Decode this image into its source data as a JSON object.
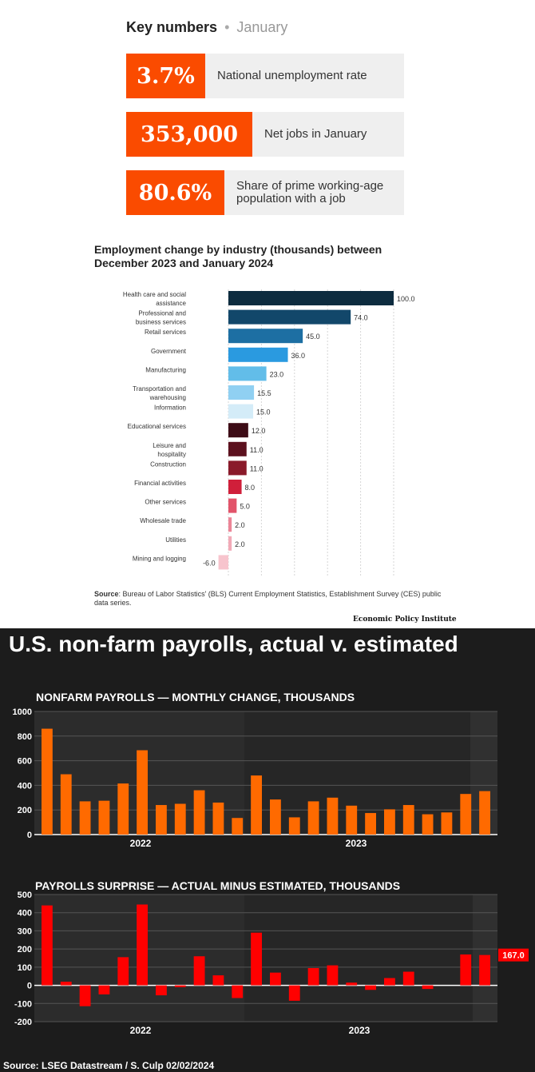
{
  "key_numbers": {
    "title": "Key numbers",
    "separator": "•",
    "period": "January",
    "items": [
      {
        "value": "3.7%",
        "label": "National unemployment rate"
      },
      {
        "value": "353,000",
        "label": "Net jobs in January"
      },
      {
        "value": "80.6%",
        "label": "Share of prime working-age population with a job"
      }
    ]
  },
  "epi": {
    "source_label": "Source",
    "source_text": ": Bureau of Labor Statistics' (BLS) Current Employment Statistics, Establishment Survey (CES) public data series.",
    "publisher": "Economic Policy Institute"
  },
  "payrolls": {
    "title": "U.S. non-farm payrolls, actual v. estimated",
    "source": "Source: LSEG Datastream / S. Culp 02/02/2024"
  },
  "chart_data": [
    {
      "type": "bar",
      "orientation": "horizontal",
      "title": "Employment change by industry (thousands) between December 2023 and January 2024",
      "categories": [
        "Health care and social assistance",
        "Professional and business services",
        "Retail services",
        "Government",
        "Manufacturing",
        "Transportation and warehousing",
        "Information",
        "Educational services",
        "Leisure and hospitality",
        "Construction",
        "Financial activities",
        "Other services",
        "Wholesale trade",
        "Utilities",
        "Mining and logging"
      ],
      "values": [
        100.0,
        74.0,
        45.0,
        36.0,
        23.0,
        15.5,
        15.0,
        12.0,
        11.0,
        11.0,
        8.0,
        5.0,
        2.0,
        2.0,
        -6.0
      ],
      "value_labels": [
        "100.0",
        "74.0",
        "45.0",
        "36.0",
        "23.0",
        "15.5",
        "15.0",
        "12.0",
        "11.0",
        "11.0",
        "8.0",
        "5.0",
        "2.0",
        "2.0",
        "-6.0"
      ],
      "colors": [
        "#0d2c3f",
        "#12476a",
        "#1d6fa3",
        "#2a9ae0",
        "#62bde9",
        "#90d0f2",
        "#d4ecf8",
        "#3d0c16",
        "#5c111e",
        "#8a1a2a",
        "#d01f3a",
        "#e2546a",
        "#ec8597",
        "#f2aab7",
        "#f7c4cd"
      ],
      "xlim": [
        -6,
        100
      ],
      "grid": true
    },
    {
      "type": "bar",
      "title": "NONFARM PAYROLLS — MONTHLY CHANGE, THOUSANDS",
      "values": [
        860,
        490,
        270,
        275,
        415,
        685,
        240,
        250,
        360,
        260,
        135,
        480,
        285,
        140,
        270,
        300,
        235,
        175,
        205,
        240,
        165,
        180,
        330,
        353
      ],
      "ylim": [
        0,
        1000
      ],
      "yticks": [
        "0",
        "200",
        "400",
        "600",
        "800",
        "1000"
      ],
      "year_labels": [
        "2022",
        "2023"
      ],
      "color": "#ff6a00",
      "grid": true
    },
    {
      "type": "bar",
      "title": "PAYROLLS SURPRISE — ACTUAL MINUS ESTIMATED, THOUSANDS",
      "values": [
        440,
        20,
        -115,
        -50,
        155,
        445,
        -55,
        -10,
        160,
        55,
        -70,
        290,
        70,
        -85,
        95,
        110,
        15,
        -25,
        40,
        75,
        -20,
        null,
        170,
        167
      ],
      "ylim": [
        -200,
        500
      ],
      "yticks": [
        "-200",
        "-100",
        "0",
        "100",
        "200",
        "300",
        "400",
        "500"
      ],
      "year_labels": [
        "2022",
        "2023"
      ],
      "last_value_label": "167.0",
      "color": "#ff0000",
      "grid": true
    }
  ]
}
